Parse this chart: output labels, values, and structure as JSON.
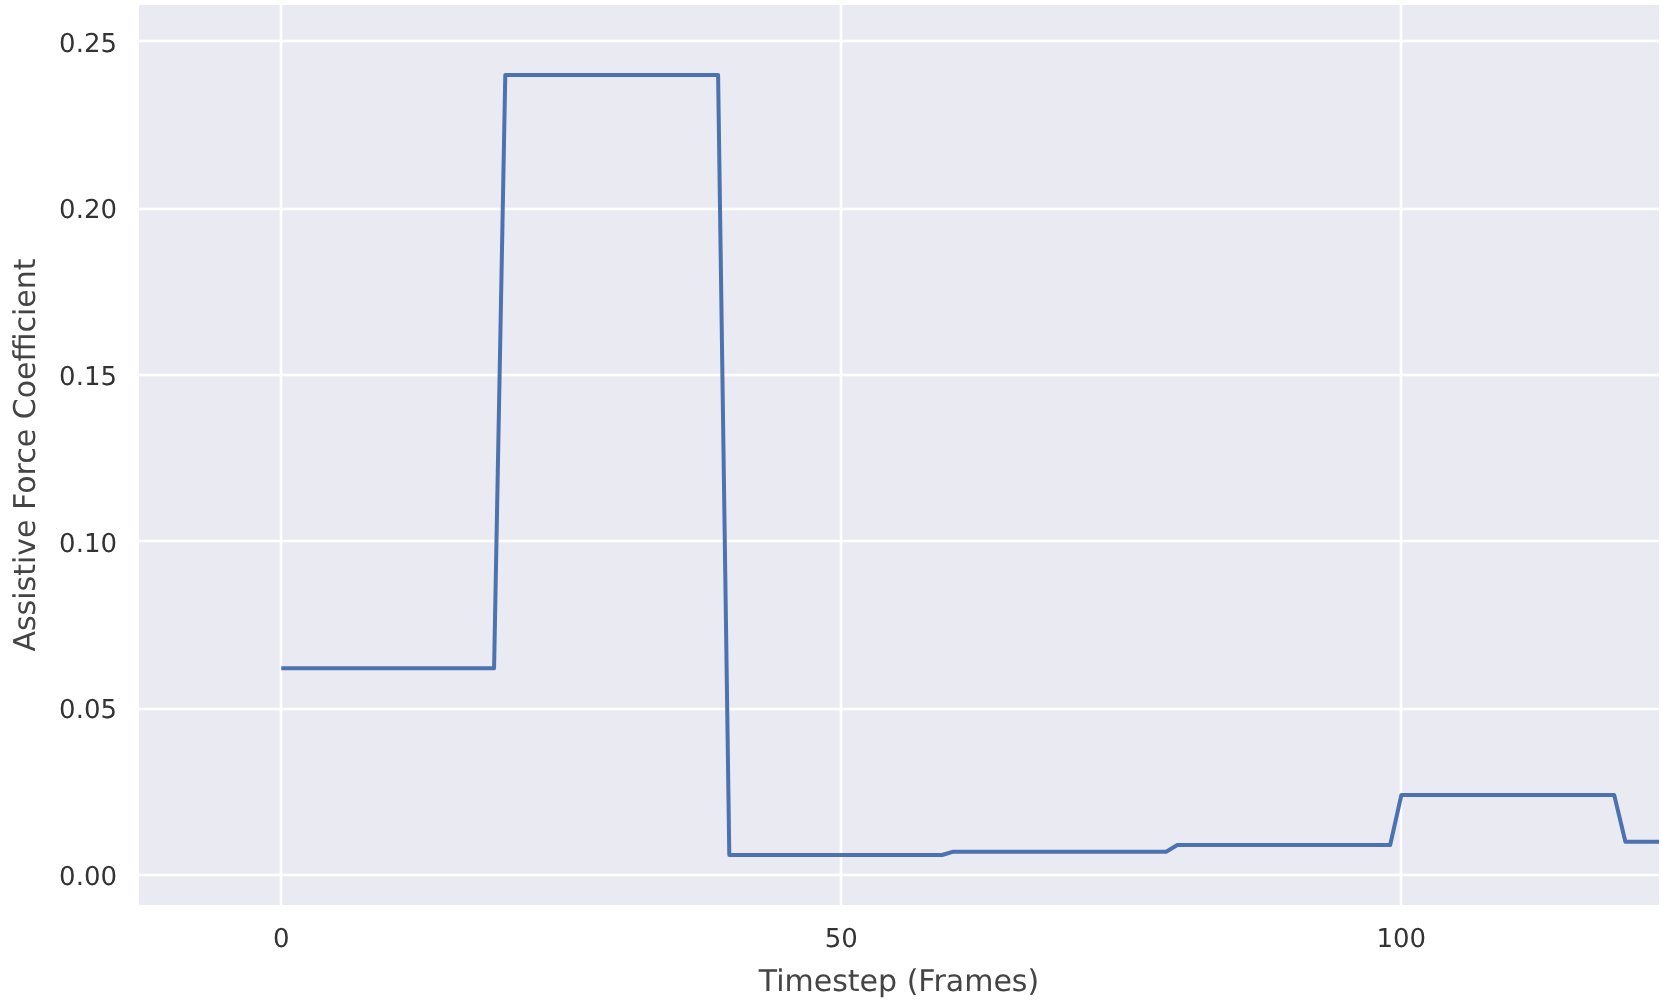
{
  "chart_data": {
    "type": "line",
    "xlabel": "Timestep (Frames)",
    "ylabel": "Assistive Force Coefficient",
    "x": [
      0,
      19,
      20,
      39,
      40,
      59,
      60,
      79,
      80,
      99,
      100,
      119,
      120,
      123
    ],
    "series": [
      {
        "color": "#4c72b0",
        "values": [
          0.062,
          0.062,
          0.24,
          0.24,
          0.006,
          0.006,
          0.007,
          0.007,
          0.009,
          0.009,
          0.024,
          0.024,
          0.01,
          0.01
        ]
      }
    ],
    "xlim": [
      -12.7,
      123
    ],
    "ylim": [
      -0.009,
      0.261
    ],
    "xticks": [
      0,
      50,
      100
    ],
    "yticks": [
      {
        "value": 0,
        "label": "0.00"
      },
      {
        "value": 0.05,
        "label": "0.05"
      },
      {
        "value": 0.1,
        "label": "0.10"
      },
      {
        "value": 0.15,
        "label": "0.15"
      },
      {
        "value": 0.2,
        "label": "0.20"
      },
      {
        "value": 0.25,
        "label": "0.25"
      }
    ],
    "grid": true
  }
}
